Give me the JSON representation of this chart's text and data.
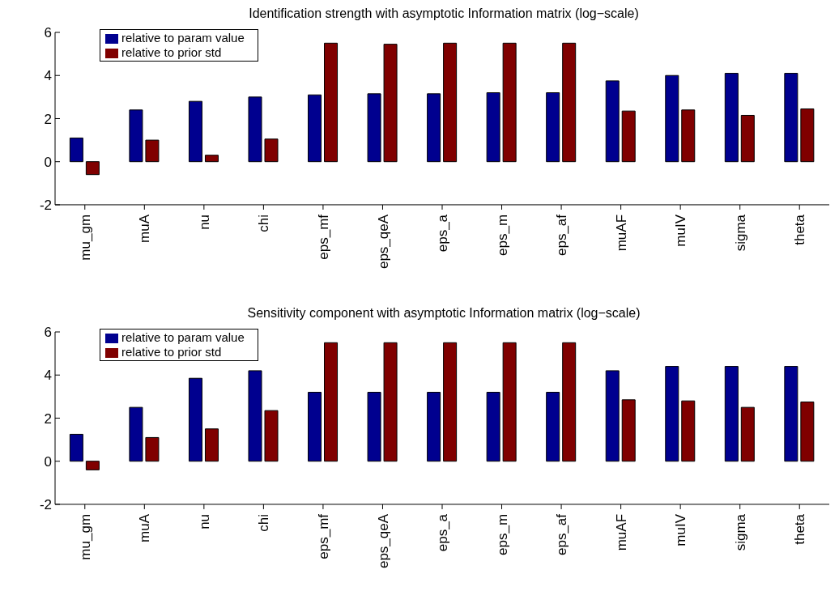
{
  "chart_data": [
    {
      "type": "bar",
      "title": "Identification strength with asymptotic Information matrix (log−scale)",
      "categories": [
        "mu_gm",
        "muA",
        "nu",
        "chi",
        "eps_mf",
        "eps_qeA",
        "eps_a",
        "eps_m",
        "eps_af",
        "muAF",
        "muIV",
        "sigma",
        "theta"
      ],
      "series": [
        {
          "name": "relative to param value",
          "color": "#00008f",
          "values": [
            1.1,
            2.4,
            2.8,
            3.0,
            3.1,
            3.15,
            3.15,
            3.2,
            3.2,
            3.75,
            4.0,
            4.1,
            4.1
          ]
        },
        {
          "name": "relative to prior std",
          "color": "#800000",
          "values": [
            -0.6,
            1.0,
            0.3,
            1.05,
            5.5,
            5.45,
            5.5,
            5.5,
            5.5,
            2.35,
            2.4,
            2.15,
            2.45
          ]
        }
      ],
      "ylim": [
        -2,
        6
      ],
      "yticks": [
        -2,
        0,
        2,
        4,
        6
      ],
      "legend": "top left",
      "grid": false
    },
    {
      "type": "bar",
      "title": "Sensitivity component with asymptotic Information matrix (log−scale)",
      "categories": [
        "mu_gm",
        "muA",
        "nu",
        "chi",
        "eps_mf",
        "eps_qeA",
        "eps_a",
        "eps_m",
        "eps_af",
        "muAF",
        "muIV",
        "sigma",
        "theta"
      ],
      "series": [
        {
          "name": "relative to param value",
          "color": "#00008f",
          "values": [
            1.25,
            2.5,
            3.85,
            4.2,
            3.2,
            3.2,
            3.2,
            3.2,
            3.2,
            4.2,
            4.4,
            4.4,
            4.4
          ]
        },
        {
          "name": "relative to prior std",
          "color": "#800000",
          "values": [
            -0.4,
            1.1,
            1.5,
            2.35,
            5.5,
            5.5,
            5.5,
            5.5,
            5.5,
            2.85,
            2.8,
            2.5,
            2.75
          ]
        }
      ],
      "ylim": [
        -2,
        6
      ],
      "yticks": [
        -2,
        0,
        2,
        4,
        6
      ],
      "legend": "top left",
      "grid": false
    }
  ]
}
